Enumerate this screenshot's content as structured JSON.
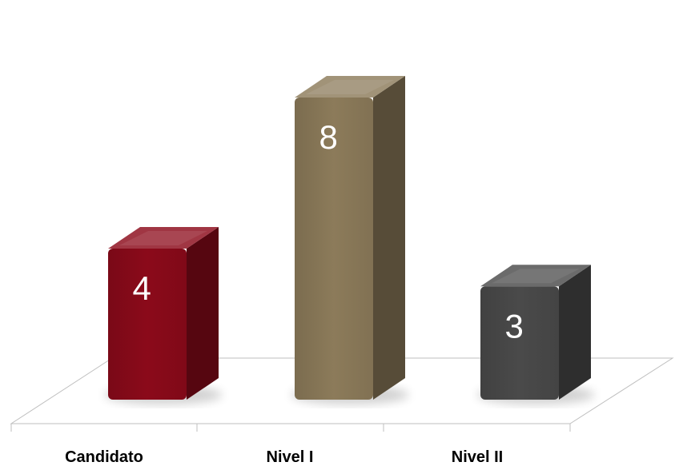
{
  "chart_data": {
    "type": "bar",
    "style": "3d-column",
    "categories": [
      "Candidato",
      "Nivel I",
      "Nivel II"
    ],
    "values": [
      4,
      8,
      3
    ],
    "data_labels": [
      "4",
      "8",
      "3"
    ],
    "colors": [
      "#8b0a1a",
      "#8c7b5a",
      "#4a4a4a"
    ],
    "ylim": [
      0,
      8
    ],
    "grid": false,
    "legend": "none"
  }
}
